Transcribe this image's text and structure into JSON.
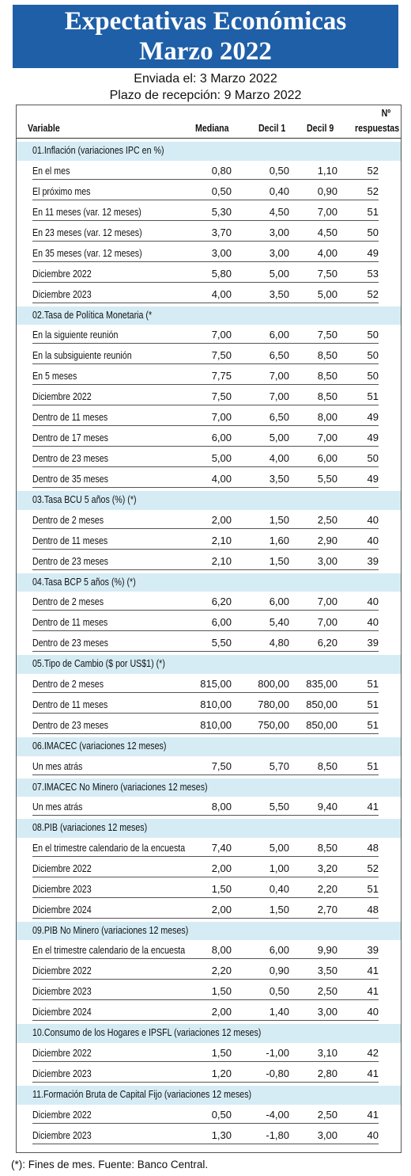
{
  "header": {
    "title_line1": "Expectativas Económicas",
    "title_line2": "Marzo 2022",
    "sent": "Enviada el: 3 Marzo 2022",
    "deadline": "Plazo de recepción: 9 Marzo 2022"
  },
  "columns": {
    "variable": "Variable",
    "mediana": "Mediana",
    "decil1": "Decil 1",
    "decil9": "Decil 9",
    "n_symbol": "Nº",
    "respuestas": "respuestas"
  },
  "sections": [
    {
      "title": "01.Inflación (variaciones IPC en %)",
      "rows": [
        [
          "En el mes",
          "0,80",
          "0,50",
          "1,10",
          "52"
        ],
        [
          "El próximo mes",
          "0,50",
          "0,40",
          "0,90",
          "52"
        ],
        [
          "En 11 meses (var. 12 meses)",
          "5,30",
          "4,50",
          "7,00",
          "51"
        ],
        [
          "En 23 meses (var. 12 meses)",
          "3,70",
          "3,00",
          "4,50",
          "50"
        ],
        [
          "En 35 meses (var. 12 meses)",
          "3,00",
          "3,00",
          "4,00",
          "49"
        ],
        [
          "Diciembre 2022",
          "5,80",
          "5,00",
          "7,50",
          "53"
        ],
        [
          "Diciembre 2023",
          "4,00",
          "3,50",
          "5,00",
          "52"
        ]
      ]
    },
    {
      "title": "02.Tasa de Política Monetaria  (*",
      "rows": [
        [
          "En la siguiente reunión",
          "7,00",
          "6,00",
          "7,50",
          "50"
        ],
        [
          "En la subsiguiente reunión",
          "7,50",
          "6,50",
          "8,50",
          "50"
        ],
        [
          "En 5 meses",
          "7,75",
          "7,00",
          "8,50",
          "50"
        ],
        [
          "Diciembre 2022",
          "7,50",
          "7,00",
          "8,50",
          "51"
        ],
        [
          "Dentro de 11 meses",
          "7,00",
          "6,50",
          "8,00",
          "49"
        ],
        [
          "Dentro de 17 meses",
          "6,00",
          "5,00",
          "7,00",
          "49"
        ],
        [
          "Dentro de 23 meses",
          "5,00",
          "4,00",
          "6,00",
          "50"
        ],
        [
          "Dentro de 35 meses",
          "4,00",
          "3,50",
          "5,50",
          "49"
        ]
      ]
    },
    {
      "title": "03.Tasa BCU 5 años  (%)  (*)",
      "rows": [
        [
          "Dentro de 2 meses",
          "2,00",
          "1,50",
          "2,50",
          "40"
        ],
        [
          "Dentro de 11 meses",
          "2,10",
          "1,60",
          "2,90",
          "40"
        ],
        [
          "Dentro de 23 meses",
          "2,10",
          "1,50",
          "3,00",
          "39"
        ]
      ]
    },
    {
      "title": "04.Tasa BCP 5 años  (%) (*)",
      "rows": [
        [
          "Dentro de 2 meses",
          "6,20",
          "6,00",
          "7,00",
          "40"
        ],
        [
          "Dentro de 11 meses",
          "6,00",
          "5,40",
          "7,00",
          "40"
        ],
        [
          "Dentro de 23 meses",
          "5,50",
          "4,80",
          "6,20",
          "39"
        ]
      ]
    },
    {
      "title": "05.Tipo de Cambio  ($ por US$1) (*)",
      "rows": [
        [
          "Dentro de 2 meses",
          "815,00",
          "800,00",
          "835,00",
          "51"
        ],
        [
          "Dentro de 11 meses",
          "810,00",
          "780,00",
          "850,00",
          "51"
        ],
        [
          "Dentro de 23 meses",
          "810,00",
          "750,00",
          "850,00",
          "51"
        ]
      ]
    },
    {
      "title": "06.IMACEC  (variaciones 12 meses)",
      "rows": [
        [
          "Un mes atrás",
          "7,50",
          "5,70",
          "8,50",
          "51"
        ]
      ]
    },
    {
      "title": "07.IMACEC No Minero (variaciones 12 meses)",
      "rows": [
        [
          "Un mes atrás",
          "8,00",
          "5,50",
          "9,40",
          "41"
        ]
      ]
    },
    {
      "title": "08.PIB  (variaciones 12 meses)",
      "rows": [
        [
          "En el trimestre calendario de la encuesta",
          "7,40",
          "5,00",
          "8,50",
          "48"
        ],
        [
          "Diciembre 2022",
          "2,00",
          "1,00",
          "3,20",
          "52"
        ],
        [
          "Diciembre 2023",
          "1,50",
          "0,40",
          "2,20",
          "51"
        ],
        [
          "Diciembre 2024",
          "2,00",
          "1,50",
          "2,70",
          "48"
        ]
      ]
    },
    {
      "title": "09.PIB No Minero (variaciones 12 meses)",
      "rows": [
        [
          "En el trimestre calendario de la encuesta",
          "8,00",
          "6,00",
          "9,90",
          "39"
        ],
        [
          "Diciembre 2022",
          "2,20",
          "0,90",
          "3,50",
          "41"
        ],
        [
          "Diciembre 2023",
          "1,50",
          "0,50",
          "2,50",
          "41"
        ],
        [
          "Diciembre 2024",
          "2,00",
          "1,40",
          "3,00",
          "40"
        ]
      ]
    },
    {
      "title": "10.Consumo de los Hogares e IPSFL  (variaciones 12 meses)",
      "rows": [
        [
          "Diciembre 2022",
          "1,50",
          "-1,00",
          "3,10",
          "42"
        ],
        [
          "Diciembre 2023",
          "1,20",
          "-0,80",
          "2,80",
          "41"
        ]
      ]
    },
    {
      "title": "11.Formación Bruta de Capital Fijo  (variaciones 12 meses)",
      "rows": [
        [
          "Diciembre 2022",
          "0,50",
          "-4,00",
          "2,50",
          "41"
        ],
        [
          "Diciembre 2023",
          "1,30",
          "-1,80",
          "3,00",
          "40"
        ]
      ]
    }
  ],
  "footer": "(*): Fines de mes. Fuente: Banco Central."
}
